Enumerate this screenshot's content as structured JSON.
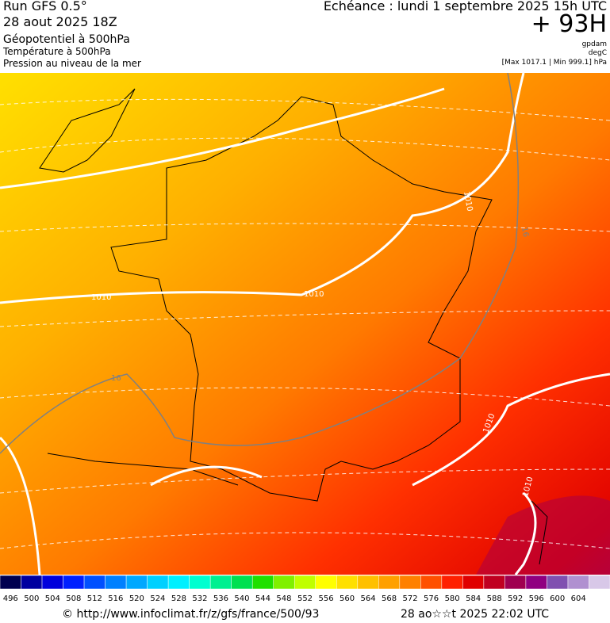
{
  "header": {
    "run": "Run GFS 0.5°",
    "date": "28 aout 2025 18Z",
    "echeance": "Echéance : lundi 1 septembre 2025 15h UTC",
    "offset": "+ 93H",
    "layers": [
      "Géopotentiel à 500hPa",
      "Température à 500hPa",
      "Pression au niveau de la mer"
    ],
    "units": [
      "gpdam",
      "degC",
      "[Max 1017.1 | Min 999.1] hPa"
    ]
  },
  "map": {
    "contour_labels": [
      "1010",
      "1010",
      "1010",
      "1010",
      "1010",
      "16",
      "16"
    ]
  },
  "colorbar": {
    "values": [
      496,
      500,
      504,
      508,
      512,
      516,
      520,
      524,
      528,
      532,
      536,
      540,
      544,
      548,
      552,
      556,
      560,
      564,
      568,
      572,
      576,
      580,
      584,
      588,
      592,
      596,
      600,
      604
    ],
    "colors": [
      "#000050",
      "#0000a0",
      "#0000dc",
      "#0020ff",
      "#0050ff",
      "#0080ff",
      "#00a8ff",
      "#00d0ff",
      "#00f0ff",
      "#00ffd0",
      "#00f090",
      "#00e050",
      "#20e000",
      "#80f000",
      "#c0ff00",
      "#ffff00",
      "#ffe000",
      "#ffc000",
      "#ffa000",
      "#ff8000",
      "#ff5000",
      "#ff2000",
      "#e00000",
      "#c00020",
      "#a00050",
      "#900080",
      "#8050b0",
      "#b090d0",
      "#d8c8e8"
    ]
  },
  "footer": {
    "url": "© http://www.infoclimat.fr/z/gfs/france/500/93",
    "timestamp": "28 ao☆☆t 2025 22:02 UTC"
  }
}
